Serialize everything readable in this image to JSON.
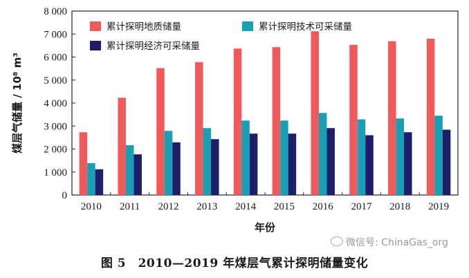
{
  "chart_data": {
    "type": "bar",
    "categories": [
      "2010",
      "2011",
      "2012",
      "2013",
      "2014",
      "2015",
      "2016",
      "2017",
      "2018",
      "2019"
    ],
    "series": [
      {
        "name": "累计探明地质储量",
        "color": "#f05a5a",
        "values": [
          2730,
          4230,
          5520,
          5780,
          6370,
          6430,
          7120,
          6530,
          6690,
          6800
        ]
      },
      {
        "name": "累计探明技术可采储量",
        "color": "#1aa0b4",
        "values": [
          1390,
          2170,
          2790,
          2910,
          3240,
          3240,
          3570,
          3290,
          3330,
          3450
        ]
      },
      {
        "name": "累计探明经济可采储量",
        "color": "#1e1e6b",
        "values": [
          1120,
          1770,
          2290,
          2430,
          2670,
          2670,
          2910,
          2600,
          2730,
          2840
        ]
      }
    ],
    "yticks": [
      0,
      1000,
      2000,
      3000,
      4000,
      5000,
      6000,
      7000,
      8000
    ],
    "ytick_labels": [
      "0",
      "1 000",
      "2 000",
      "3 000",
      "4 000",
      "5 000",
      "6 000",
      "7 000",
      "8 000"
    ],
    "ylim": [
      0,
      8000
    ],
    "xlabel": "年份",
    "ylabel": "煤层气储量 / 10⁸ m³",
    "legend_position": "top",
    "grid": false
  },
  "caption": "图 5　2010—2019 年煤层气累计探明储量变化",
  "watermark": "微信号: ChinaGas_org"
}
